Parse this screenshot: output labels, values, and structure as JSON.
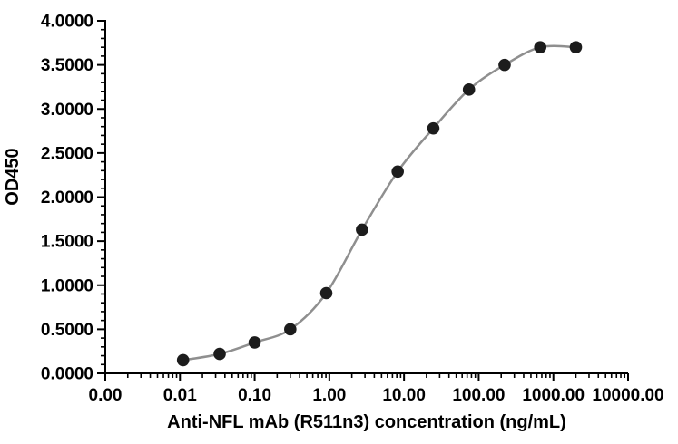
{
  "chart_data": {
    "type": "scatter",
    "title": "",
    "xlabel": "Anti-NFL mAb (R511n3) concentration (ng/mL)",
    "ylabel": "OD450",
    "x_scale": "log",
    "y_scale": "linear",
    "xlim": [
      0.001,
      10000
    ],
    "ylim": [
      0,
      4
    ],
    "grid": false,
    "legend": false,
    "x_ticks": {
      "values": [
        0.001,
        0.01,
        0.1,
        1,
        10,
        100,
        1000,
        10000
      ],
      "labels": [
        "0.00",
        "0.01",
        "0.10",
        "1.00",
        "10.00",
        "100.00",
        "1000.00",
        "10000.00"
      ]
    },
    "y_ticks": {
      "values": [
        0,
        0.5,
        1,
        1.5,
        2,
        2.5,
        3,
        3.5,
        4
      ],
      "labels": [
        "0.0000",
        "0.5000",
        "1.0000",
        "1.5000",
        "2.0000",
        "2.5000",
        "3.0000",
        "3.5000",
        "4.0000"
      ]
    },
    "y_minor_step": 0.1,
    "x_minor": "log-decade-2-to-9",
    "colors": {
      "axis": "#000000",
      "text": "#000000",
      "curve": "#8f8f8f",
      "marker": "#1c1c1c",
      "background": "#ffffff"
    },
    "series": [
      {
        "name": "Anti-NFL mAb (R511n3)",
        "marker": "circle",
        "line_style": "smooth",
        "x": [
          0.011,
          0.034,
          0.1,
          0.3,
          0.91,
          2.74,
          8.23,
          24.69,
          74.07,
          222.22,
          666.67,
          2000
        ],
        "y": [
          0.15,
          0.22,
          0.35,
          0.5,
          0.91,
          1.63,
          2.29,
          2.78,
          3.22,
          3.5,
          3.7,
          3.7
        ]
      }
    ]
  }
}
